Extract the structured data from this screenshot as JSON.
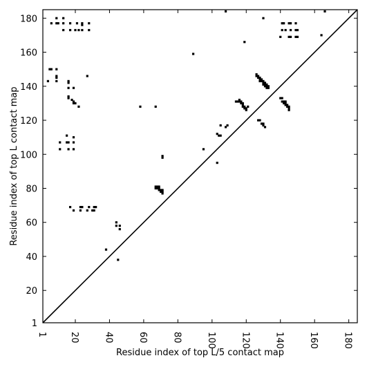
{
  "chart_data": {
    "type": "scatter",
    "marker": "square",
    "title": "",
    "xlabel": "Residue index of top L/5 contact map",
    "ylabel": "Residue index of top L contact map",
    "xlim": [
      1,
      185
    ],
    "ylim": [
      1,
      185
    ],
    "xticks": [
      1,
      20,
      40,
      60,
      80,
      100,
      120,
      140,
      160,
      180
    ],
    "yticks": [
      1,
      20,
      40,
      60,
      80,
      100,
      120,
      140,
      160,
      180
    ],
    "xtick_labels": [
      "1",
      "20",
      "40",
      "60",
      "80",
      "100",
      "120",
      "140",
      "160",
      "180"
    ],
    "ytick_labels": [
      "1",
      "20",
      "40",
      "60",
      "80",
      "100",
      "120",
      "140",
      "160",
      "180"
    ],
    "grid": false,
    "diagonal_line": true,
    "colors": {
      "points": "#000000",
      "diagonal": "#000000",
      "frame": "#000000"
    },
    "series": [
      {
        "region": "upper-left (top L contacts)",
        "points": [
          [
            6,
            177
          ],
          [
            9,
            177
          ],
          [
            10,
            177
          ],
          [
            13,
            177
          ],
          [
            17,
            177
          ],
          [
            21,
            177
          ],
          [
            24,
            177
          ],
          [
            28,
            177
          ],
          [
            9,
            180
          ],
          [
            13,
            180
          ],
          [
            13,
            173
          ],
          [
            17,
            173
          ],
          [
            20,
            173
          ],
          [
            22,
            173
          ],
          [
            24,
            173
          ],
          [
            28,
            173
          ],
          [
            24,
            176
          ],
          [
            5,
            150
          ],
          [
            6,
            150
          ],
          [
            9,
            150
          ],
          [
            4,
            143
          ],
          [
            9,
            143
          ],
          [
            9,
            145
          ],
          [
            9,
            146
          ],
          [
            16,
            143
          ],
          [
            16,
            142
          ],
          [
            16,
            139
          ],
          [
            19,
            139
          ],
          [
            16,
            134
          ],
          [
            16,
            133
          ],
          [
            18,
            132
          ],
          [
            19,
            131
          ],
          [
            19,
            130
          ],
          [
            20,
            130
          ],
          [
            22,
            128
          ],
          [
            27,
            146
          ],
          [
            11,
            107
          ],
          [
            15,
            107
          ],
          [
            16,
            107
          ],
          [
            19,
            107
          ],
          [
            11,
            103
          ],
          [
            16,
            103
          ],
          [
            19,
            103
          ],
          [
            15,
            111
          ],
          [
            19,
            110
          ],
          [
            17,
            69
          ],
          [
            23,
            69
          ],
          [
            24,
            69
          ],
          [
            28,
            69
          ],
          [
            31,
            69
          ],
          [
            32,
            69
          ],
          [
            19,
            67
          ],
          [
            23,
            67
          ],
          [
            27,
            67
          ],
          [
            30,
            67
          ],
          [
            31,
            67
          ],
          [
            38,
            44
          ],
          [
            44,
            60
          ],
          [
            44,
            58
          ],
          [
            46,
            58
          ],
          [
            46,
            56
          ],
          [
            45,
            38
          ],
          [
            58,
            128
          ],
          [
            67,
            128
          ],
          [
            71,
            98
          ],
          [
            71,
            99
          ],
          [
            89,
            159
          ],
          [
            95,
            103
          ],
          [
            103,
            95
          ],
          [
            108,
            184
          ],
          [
            119,
            166
          ],
          [
            130,
            180
          ],
          [
            166,
            184
          ]
        ]
      },
      {
        "region": "lower-right (top L/5 contacts)",
        "points": [
          [
            67,
            81
          ],
          [
            68,
            81
          ],
          [
            69,
            81
          ],
          [
            67,
            80
          ],
          [
            68,
            80
          ],
          [
            69,
            80
          ],
          [
            69,
            79
          ],
          [
            70,
            79
          ],
          [
            71,
            79
          ],
          [
            70,
            78
          ],
          [
            71,
            78
          ],
          [
            71,
            77
          ],
          [
            103,
            112
          ],
          [
            104,
            111
          ],
          [
            105,
            111
          ],
          [
            105,
            117
          ],
          [
            108,
            116
          ],
          [
            109,
            117
          ],
          [
            114,
            131
          ],
          [
            115,
            131
          ],
          [
            116,
            132
          ],
          [
            116,
            131
          ],
          [
            117,
            131
          ],
          [
            117,
            130
          ],
          [
            118,
            130
          ],
          [
            118,
            129
          ],
          [
            118,
            128
          ],
          [
            119,
            128
          ],
          [
            119,
            127
          ],
          [
            120,
            127
          ],
          [
            120,
            126
          ],
          [
            121,
            128
          ],
          [
            126,
            147
          ],
          [
            126,
            146
          ],
          [
            127,
            146
          ],
          [
            127,
            145
          ],
          [
            128,
            145
          ],
          [
            128,
            144
          ],
          [
            128,
            143
          ],
          [
            129,
            144
          ],
          [
            129,
            143
          ],
          [
            130,
            143
          ],
          [
            130,
            142
          ],
          [
            130,
            141
          ],
          [
            131,
            142
          ],
          [
            131,
            141
          ],
          [
            131,
            140
          ],
          [
            132,
            141
          ],
          [
            132,
            140
          ],
          [
            132,
            139
          ],
          [
            133,
            139
          ],
          [
            133,
            140
          ],
          [
            127,
            120
          ],
          [
            128,
            120
          ],
          [
            129,
            118
          ],
          [
            130,
            118
          ],
          [
            130,
            117
          ],
          [
            131,
            116
          ],
          [
            140,
            133
          ],
          [
            141,
            133
          ],
          [
            141,
            131
          ],
          [
            142,
            131
          ],
          [
            142,
            130
          ],
          [
            143,
            130
          ],
          [
            143,
            129
          ],
          [
            144,
            129
          ],
          [
            144,
            128
          ],
          [
            145,
            128
          ],
          [
            145,
            127
          ],
          [
            145,
            126
          ],
          [
            143,
            131
          ],
          [
            141,
            177
          ],
          [
            142,
            177
          ],
          [
            145,
            177
          ],
          [
            146,
            177
          ],
          [
            149,
            177
          ],
          [
            141,
            173
          ],
          [
            143,
            173
          ],
          [
            146,
            173
          ],
          [
            149,
            173
          ],
          [
            150,
            173
          ],
          [
            145,
            169
          ],
          [
            146,
            169
          ],
          [
            149,
            169
          ],
          [
            150,
            169
          ],
          [
            140,
            169
          ],
          [
            164,
            170
          ]
        ]
      }
    ]
  }
}
